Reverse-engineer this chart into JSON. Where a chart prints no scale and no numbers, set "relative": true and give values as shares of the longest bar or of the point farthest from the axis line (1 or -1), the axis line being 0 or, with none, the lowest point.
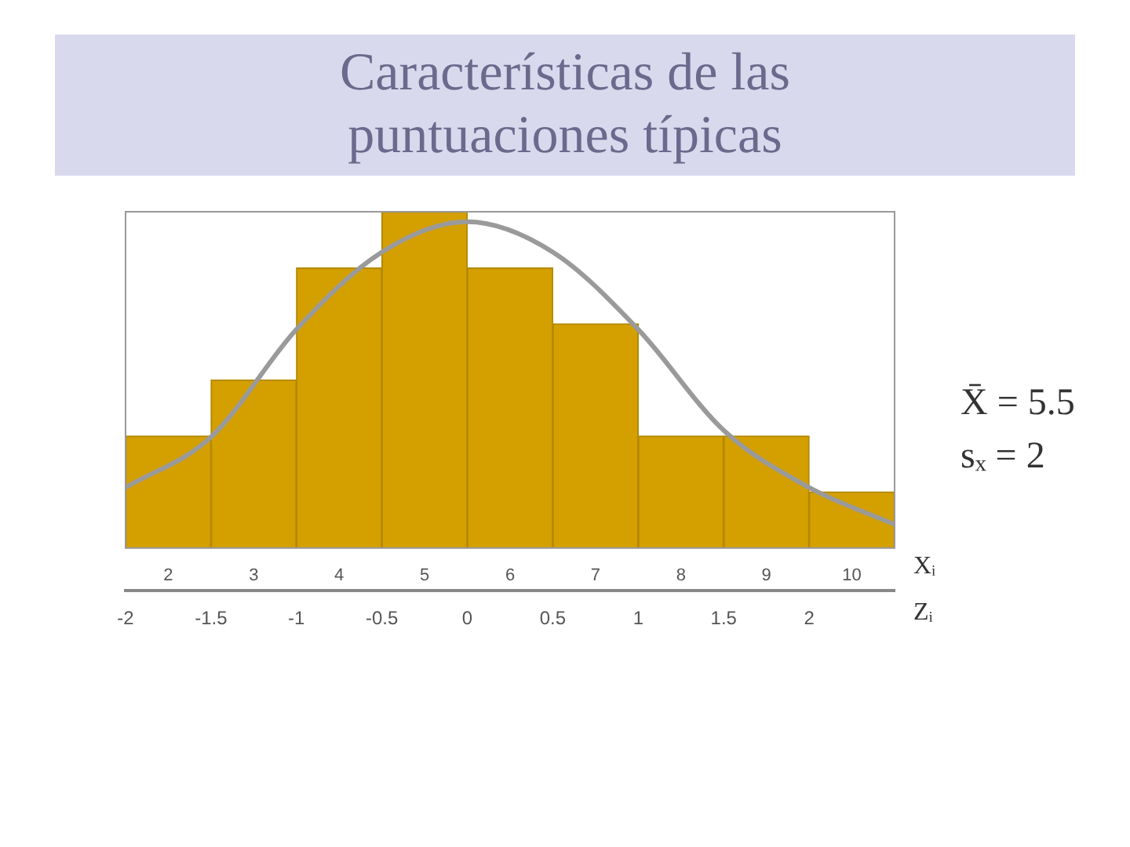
{
  "chart_data": {
    "type": "histogram",
    "title": "Características de las puntuaciones típicas",
    "bins": [
      1.5,
      2.5,
      3.5,
      4.5,
      5.5,
      6.5,
      7.5,
      8.5,
      9.5,
      10.5
    ],
    "values": [
      0.333,
      0.5,
      0.833,
      1,
      0.833,
      0.667,
      0.333,
      0.333,
      0.167
    ],
    "color": "#d4a000",
    "relative": true,
    "xlim": [
      1.5,
      10.5
    ],
    "xticks": [
      2,
      3,
      4,
      5,
      6,
      7,
      8,
      9,
      10
    ],
    "xlabel": "Xᵢ",
    "x2lim": [
      -2,
      2.5
    ],
    "x2ticks": [
      -2,
      -1.5,
      -1,
      -0.5,
      0,
      0.5,
      1,
      1.5,
      2
    ],
    "x2label": "Zᵢ",
    "series": [
      {
        "type": "line",
        "color": "#9a9a9a",
        "x": [
          1.5,
          2.5,
          3.5,
          4.5,
          5.5,
          6.5,
          7.5,
          8.5,
          9.5,
          10.5
        ],
        "values": [
          0.18,
          0.33,
          0.65,
          0.88,
          0.97,
          0.88,
          0.65,
          0.35,
          0.18,
          0.07
        ]
      }
    ],
    "annotations": [
      "X̄ = 5.5",
      "sₓ = 2"
    ],
    "grid": false,
    "legend": false,
    "marker": "none"
  }
}
